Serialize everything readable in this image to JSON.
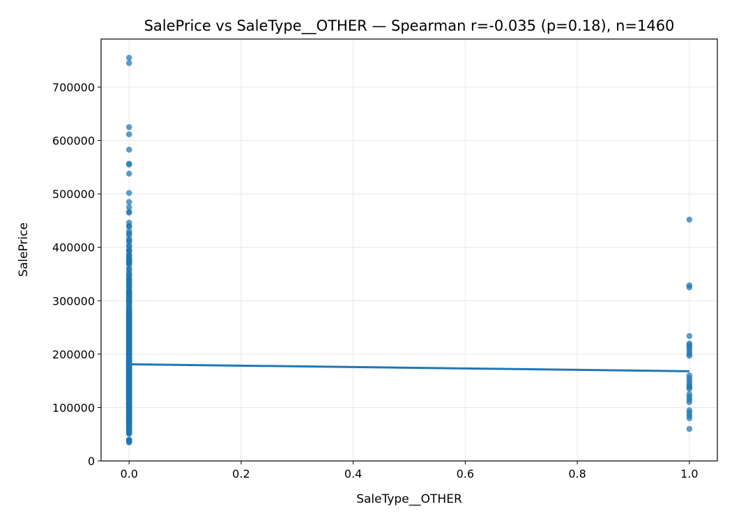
{
  "chart_data": {
    "type": "scatter",
    "title": "SalePrice vs SaleType__OTHER — Spearman r=-0.035 (p=0.18), n=1460",
    "xlabel": "SaleType__OTHER",
    "ylabel": "SalePrice",
    "xlim": [
      -0.05,
      1.05
    ],
    "ylim": [
      0,
      790000
    ],
    "xticks": [
      0.0,
      0.2,
      0.4,
      0.6,
      0.8,
      1.0
    ],
    "xtick_labels": [
      "0.0",
      "0.2",
      "0.4",
      "0.6",
      "0.8",
      "1.0"
    ],
    "yticks": [
      0,
      100000,
      200000,
      300000,
      400000,
      500000,
      600000,
      700000
    ],
    "ytick_labels": [
      "0",
      "100000",
      "200000",
      "300000",
      "400000",
      "500000",
      "600000",
      "700000"
    ],
    "grid": true,
    "point_color": "#1f77b4",
    "line_color": "#1f77b4",
    "series": [
      {
        "x": 0,
        "y": [
          755000,
          745000,
          625000,
          611657,
          582933,
          556581,
          555000,
          538000,
          501837,
          485000,
          475000,
          466500,
          465000,
          446261,
          440000,
          438780,
          430000,
          426000,
          423000,
          415298,
          412500,
          410000,
          402861,
          402000,
          395000,
          394617,
          392500,
          386250,
          385000,
          383970,
          380000,
          378500,
          377500,
          377426,
          375000,
          374000,
          372500,
          372402,
          370878,
          369900,
          367294,
          360000,
          359100,
          354000,
          350000,
          348000,
          345000,
          341000,
          340000,
          337500,
          335000,
          333168,
          330000,
          328900,
          325624,
          325300,
          320000,
          319000,
          318061,
          317000,
          315750,
          315000,
          314813,
          313000,
          312500,
          311872,
          310000,
          309000,
          306000,
          305900,
          305000,
          303477,
          302000,
          301500,
          300000,
          299800,
          298236,
          295493,
          295000,
          293077,
          290000,
          287000,
          285000,
          284000,
          282922,
          281213,
          281000,
          280000,
          278000,
          277500,
          277000,
          275500,
          275000,
          274970,
          274900,
          274725,
          274300,
          274000,
          272000,
          271900,
          271000,
          270000,
          269790,
          269500,
          268000,
          267000,
          266500,
          266000,
          265979,
          265900,
          265000,
          264561,
          264132,
          263435,
          263000,
          262500,
          262280,
          262000,
          260400,
          260000,
          259500,
          259000,
          258000,
          257500,
          257000,
          256300,
          256000,
          255900,
          255500,
          255000,
          254900,
          254000,
          253293,
          253000,
          252678,
          252000,
          251000,
          250580,
          250000,
          249700,
          248900,
          248328,
          248000,
          246578,
          245700,
          245500,
          245350,
          245000,
          244600,
          244400,
          244000,
          243000,
          242000,
          241500,
          241000,
          240000,
          239900,
          239799,
          239686,
          239500,
          239000,
          238000,
          237500,
          237000,
          236500,
          236000,
          235128,
          235000,
          234000,
          233230,
          233170,
          233000,
          232600,
          232000,
          231500,
          230500,
          230000,
          229456,
          229000,
          228950,
          228500,
          228000,
          227875,
          227680,
          227000,
          226700,
          226000,
          225000,
          224900,
          224500,
          224000,
          223500,
          223000,
          222500,
          222000,
          221500,
          221000,
          220000,
          219500,
          219210,
          218000,
          217500,
          217000,
          216837,
          216500,
          216000,
          215200,
          215000,
          214900,
          214500,
          214000,
          213500,
          213490,
          213250,
          213000,
          212900,
          212000,
          211000,
          210000,
          209500,
          208900,
          208500,
          208300,
          208000,
          207500,
          207000,
          206900,
          206300,
          206000,
          205950,
          205000,
          204900,
          204750,
          204000,
          203000,
          202900,
          202665,
          202500,
          202000,
          201800,
          201000,
          200624,
          200500,
          200141,
          200100,
          200000,
          199900,
          199500,
          199000,
          198900,
          198500,
          197900,
          197500,
          197000,
          196500,
          196000,
          195400,
          195000,
          194700,
          194500,
          194201,
          194000,
          193879,
          193500,
          193000,
          192500,
          192140,
          192000,
          191000,
          190000,
          189950,
          189000,
          188700,
          188500,
          188000,
          187750,
          187500,
          187100,
          187000,
          186700,
          186500,
          186000,
          185900,
          185850,
          185750,
          185000,
          184900,
          184750,
          184100,
          184000,
          183900,
          183500,
          183200,
          183000,
          182900,
          182500,
          182000,
          181900,
          181500,
          181134,
          181000,
          180500,
          180000,
          179900,
          179600,
          179540,
          179500,
          179400,
          179200,
          179000,
          178900,
          178740,
          178400,
          178000,
          177500,
          177000,
          176500,
          176485,
          176432,
          176000,
          175900,
          175500,
          175000,
          174900,
          174500,
          174000,
          173900,
          173733,
          173500,
          173000,
          172785,
          172500,
          172400,
          172000,
          171900,
          171750,
          171500,
          171000,
          170000,
          169990,
          169900,
          169500,
          169000,
          168500,
          168000,
          167900,
          167500,
          167240,
          167000,
          166000,
          165600,
          165500,
          165400,
          165150,
          165000,
          164990,
          164900,
          164700,
          164500,
          164000,
          163990,
          163900,
          163500,
          163000,
          162900,
          162500,
          162000,
          161750,
          161500,
          161000,
          160200,
          160000,
          159950,
          159895,
          159500,
          159434,
          159000,
          158900,
          158500,
          158000,
          157900,
          157500,
          157000,
          156932,
          156500,
          156000,
          155900,
          155835,
          155000,
          154900,
          154500,
          154300,
          154000,
          153900,
          153575,
          153500,
          153337,
          153000,
          152000,
          151500,
          151400,
          151000,
          150900,
          150750,
          150500,
          150000,
          149900,
          149700,
          149500,
          149350,
          149300,
          149000,
          148800,
          148500,
          148000,
          147500,
          147400,
          147000,
          146800,
          146500,
          146000,
          145900,
          145500,
          145250,
          145000,
          144900,
          144500,
          144152,
          144000,
          143900,
          143750,
          143500,
          143250,
          143000,
          142953,
          142600,
          142500,
          142125,
          142000,
          141500,
          141000,
          140200,
          140000,
          139950,
          139900,
          139600,
          139500,
          139400,
          139000,
          138887,
          138800,
          138500,
          138000,
          137900,
          137500,
          137450,
          137000,
          136905,
          136500,
          136000,
          135960,
          135900,
          135750,
          135500,
          135000,
          134900,
          134800,
          134500,
          134450,
          134432,
          134000,
          133900,
          133700,
          133500,
          133000,
          132500,
          132250,
          132000,
          131500,
          131400,
          131000,
          130500,
          130250,
          130000,
          129900,
          129500,
          129000,
          128950,
          128900,
          128500,
          128200,
          128000,
          127500,
          127000,
          126500,
          126175,
          126000,
          125500,
          125000,
          124900,
          124500,
          124000,
          123600,
          123500,
          123000,
          122900,
          122500,
          122000,
          121600,
          121500,
          121000,
          120500,
          120000,
          119900,
          119750,
          119500,
          119200,
          119000,
          118964,
          118858,
          118500,
          118400,
          118000,
          117500,
          117000,
          116900,
          116500,
          116050,
          116000,
          115000,
          114504,
          114500,
          114000,
          113000,
          112500,
          112000,
          111250,
          111000,
          110500,
          110000,
          109900,
          109500,
          109008,
          109000,
          108959,
          108500,
          108480,
          108000,
          107900,
          107500,
          107400,
          107000,
          106500,
          106250,
          106000,
          105900,
          105500,
          105000,
          104900,
          104000,
          103600,
          103200,
          103000,
          102776,
          102000,
          101800,
          101000,
          100000,
          99900,
          99600,
          99500,
          98600,
          98300,
          98000,
          97500,
          97000,
          96900,
          96500,
          96000,
          95000,
          94750,
          94500,
          94000,
          93500,
          93000,
          92900,
          92000,
          91500,
          91300,
          91000,
          90350,
          90000,
          89500,
          89471,
          89000,
          88750,
          88000,
          87500,
          87000,
          86000,
          85500,
          85400,
          85000,
          84900,
          84500,
          84000,
          83500,
          83000,
          82500,
          82000,
          81000,
          80500,
          80000,
          79900,
          79500,
          79000,
          78500,
          78000,
          77500,
          76500,
          76000,
          75500,
          75000,
          73000,
          72500,
          71500,
          71000,
          70000,
          68500,
          68400,
          67000,
          66500,
          64500,
          64000,
          62383,
          61000,
          60000,
          58500,
          57000,
          55993,
          55500,
          55000,
          52500,
          52000,
          51000,
          40000,
          39300,
          37900,
          35311,
          34900
        ]
      },
      {
        "x": 1,
        "y": [
          451950,
          328900,
          325000,
          234000,
          220000,
          217000,
          214000,
          210000,
          205000,
          200000,
          197000,
          160000,
          155000,
          150000,
          145000,
          141000,
          138000,
          135000,
          125000,
          120000,
          115000,
          110000,
          95000,
          90000,
          85000,
          80000,
          60000
        ]
      }
    ],
    "trend_line": {
      "x": [
        0,
        1
      ],
      "y": [
        181000,
        168000
      ]
    }
  }
}
